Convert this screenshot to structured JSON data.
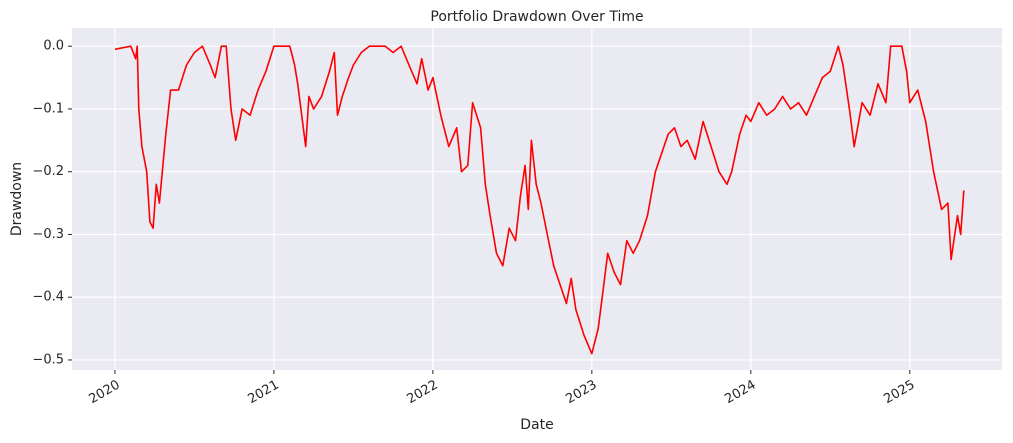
{
  "chart_data": {
    "type": "line",
    "title": "Portfolio Drawdown Over Time",
    "x_label": "Date",
    "y_label": "Drawdown",
    "x": [
      2020.0,
      2020.1,
      2020.13,
      2020.14,
      2020.15,
      2020.17,
      2020.2,
      2020.22,
      2020.24,
      2020.26,
      2020.28,
      2020.32,
      2020.35,
      2020.4,
      2020.45,
      2020.5,
      2020.55,
      2020.6,
      2020.63,
      2020.67,
      2020.7,
      2020.73,
      2020.76,
      2020.8,
      2020.85,
      2020.9,
      2020.95,
      2021.0,
      2021.05,
      2021.1,
      2021.13,
      2021.15,
      2021.18,
      2021.2,
      2021.22,
      2021.25,
      2021.3,
      2021.35,
      2021.38,
      2021.4,
      2021.43,
      2021.47,
      2021.5,
      2021.55,
      2021.6,
      2021.7,
      2021.75,
      2021.8,
      2021.85,
      2021.9,
      2021.93,
      2021.97,
      2022.0,
      2022.05,
      2022.1,
      2022.15,
      2022.18,
      2022.22,
      2022.25,
      2022.3,
      2022.33,
      2022.36,
      2022.4,
      2022.44,
      2022.48,
      2022.52,
      2022.55,
      2022.58,
      2022.6,
      2022.62,
      2022.65,
      2022.68,
      2022.72,
      2022.76,
      2022.8,
      2022.84,
      2022.87,
      2022.9,
      2022.95,
      2023.0,
      2023.04,
      2023.07,
      2023.1,
      2023.14,
      2023.18,
      2023.22,
      2023.26,
      2023.3,
      2023.35,
      2023.4,
      2023.44,
      2023.48,
      2023.52,
      2023.56,
      2023.6,
      2023.65,
      2023.7,
      2023.75,
      2023.8,
      2023.85,
      2023.88,
      2023.93,
      2023.97,
      2024.0,
      2024.05,
      2024.1,
      2024.15,
      2024.2,
      2024.25,
      2024.3,
      2024.35,
      2024.4,
      2024.45,
      2024.5,
      2024.55,
      2024.58,
      2024.62,
      2024.65,
      2024.7,
      2024.75,
      2024.8,
      2024.85,
      2024.88,
      2024.92,
      2024.95,
      2024.98,
      2025.0,
      2025.05,
      2025.1,
      2025.15,
      2025.2,
      2025.24,
      2025.26,
      2025.3,
      2025.32,
      2025.34
    ],
    "series": [
      {
        "name": "Drawdown",
        "color": "#ff0000",
        "values": [
          -0.005,
          0.0,
          -0.02,
          0.0,
          -0.1,
          -0.16,
          -0.2,
          -0.28,
          -0.29,
          -0.22,
          -0.25,
          -0.14,
          -0.07,
          -0.07,
          -0.03,
          -0.01,
          0.0,
          -0.03,
          -0.05,
          0.0,
          0.0,
          -0.1,
          -0.15,
          -0.1,
          -0.11,
          -0.07,
          -0.04,
          0.0,
          0.0,
          0.0,
          -0.03,
          -0.06,
          -0.12,
          -0.16,
          -0.08,
          -0.1,
          -0.08,
          -0.04,
          -0.01,
          -0.11,
          -0.08,
          -0.05,
          -0.03,
          -0.01,
          0.0,
          0.0,
          -0.01,
          0.0,
          -0.03,
          -0.06,
          -0.02,
          -0.07,
          -0.05,
          -0.11,
          -0.16,
          -0.13,
          -0.2,
          -0.19,
          -0.09,
          -0.13,
          -0.22,
          -0.27,
          -0.33,
          -0.35,
          -0.29,
          -0.31,
          -0.24,
          -0.19,
          -0.26,
          -0.15,
          -0.22,
          -0.25,
          -0.3,
          -0.35,
          -0.38,
          -0.41,
          -0.37,
          -0.42,
          -0.46,
          -0.49,
          -0.45,
          -0.39,
          -0.33,
          -0.36,
          -0.38,
          -0.31,
          -0.33,
          -0.31,
          -0.27,
          -0.2,
          -0.17,
          -0.14,
          -0.13,
          -0.16,
          -0.15,
          -0.18,
          -0.12,
          -0.16,
          -0.2,
          -0.22,
          -0.2,
          -0.14,
          -0.11,
          -0.12,
          -0.09,
          -0.11,
          -0.1,
          -0.08,
          -0.1,
          -0.09,
          -0.11,
          -0.08,
          -0.05,
          -0.04,
          0.0,
          -0.03,
          -0.1,
          -0.16,
          -0.09,
          -0.11,
          -0.06,
          -0.09,
          0.0,
          0.0,
          0.0,
          -0.04,
          -0.09,
          -0.07,
          -0.12,
          -0.2,
          -0.26,
          -0.25,
          -0.34,
          -0.27,
          -0.3,
          -0.23
        ]
      }
    ],
    "xlim": [
      2019.73,
      2025.58
    ],
    "xticks": [
      2020,
      2021,
      2022,
      2023,
      2024,
      2025
    ],
    "ylim": [
      -0.516,
      0.029
    ],
    "yticks": [
      {
        "value": -0.5,
        "label": "−0.5"
      },
      {
        "value": -0.4,
        "label": "−0.4"
      },
      {
        "value": -0.3,
        "label": "−0.3"
      },
      {
        "value": -0.2,
        "label": "−0.2"
      },
      {
        "value": -0.1,
        "label": "−0.1"
      },
      {
        "value": 0,
        "label": "0.0"
      }
    ],
    "grid": true
  }
}
